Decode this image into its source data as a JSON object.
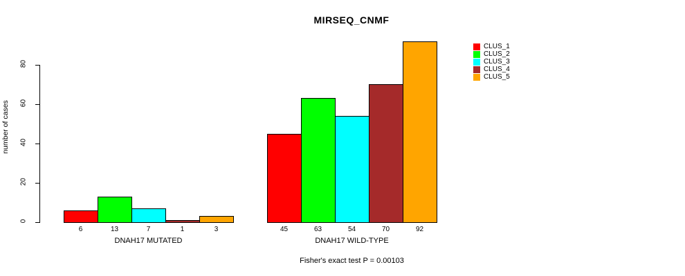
{
  "chart_data": {
    "type": "bar",
    "title": "MIRSEQ_CNMF",
    "ylabel": "number of cases",
    "xlabel": "",
    "categories": [
      "DNAH17 MUTATED",
      "DNAH17 WILD-TYPE"
    ],
    "series": [
      {
        "name": "CLUS_1",
        "color": "#FF0000",
        "values": [
          6,
          45
        ]
      },
      {
        "name": "CLUS_2",
        "color": "#00FF00",
        "values": [
          13,
          63
        ]
      },
      {
        "name": "CLUS_3",
        "color": "#00FFFF",
        "values": [
          7,
          54
        ]
      },
      {
        "name": "CLUS_4",
        "color": "#A52A2A",
        "values": [
          1,
          70
        ]
      },
      {
        "name": "CLUS_5",
        "color": "#FFA500",
        "values": [
          3,
          92
        ]
      }
    ],
    "yticks": [
      0,
      20,
      40,
      60,
      80
    ],
    "ylim": [
      0,
      92
    ],
    "grid": false,
    "legend_position": "right",
    "annotation": "Fisher's exact test P = 0.00103"
  }
}
